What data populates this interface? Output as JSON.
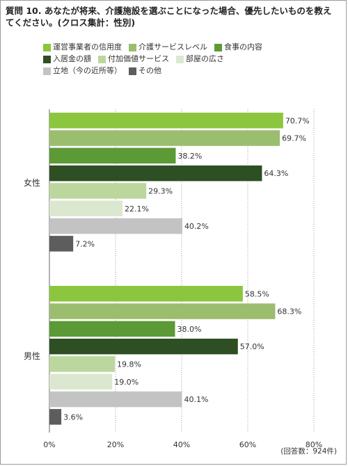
{
  "title": "質問 10. あなたが将来、介護施設を選ぶことになった場合、優先したいものを教えてください。(クロス集計：性別)",
  "note": "(回答数：924件)",
  "chart_data": {
    "type": "bar",
    "orientation": "horizontal",
    "title": "質問 10. あなたが将来、介護施設を選ぶことになった場合、優先したいものを教えてください。(クロス集計：性別)",
    "categories": [
      "女性",
      "男性"
    ],
    "series": [
      {
        "name": "運営事業者の信用度",
        "color": "#8cc63f",
        "values": [
          70.7,
          58.5
        ]
      },
      {
        "name": "介護サービスレベル",
        "color": "#9bbd6e",
        "values": [
          69.7,
          68.3
        ]
      },
      {
        "name": "食事の内容",
        "color": "#5b9a35",
        "values": [
          38.2,
          38.0
        ]
      },
      {
        "name": "入居金の額",
        "color": "#2e4e23",
        "values": [
          64.3,
          57.0
        ]
      },
      {
        "name": "付加価値サービス",
        "color": "#bcd79e",
        "values": [
          29.3,
          19.8
        ]
      },
      {
        "name": "部屋の広さ",
        "color": "#dbe8cf",
        "values": [
          22.1,
          19.0
        ]
      },
      {
        "name": "立地（今の近所等）",
        "color": "#c3c3c3",
        "values": [
          40.2,
          40.1
        ]
      },
      {
        "name": "その他",
        "color": "#5d5d5d",
        "values": [
          7.2,
          3.6
        ]
      }
    ],
    "value_labels": [
      [
        "70.7%",
        "69.7%",
        "38.2%",
        "64.3%",
        "29.3%",
        "22.1%",
        "40.2%",
        "7.2%"
      ],
      [
        "58.5%",
        "68.3%",
        "38.0%",
        "57.0%",
        "19.8%",
        "19.0%",
        "40.1%",
        "3.6%"
      ]
    ],
    "x_ticks": [
      "0%",
      "20%",
      "40%",
      "60%",
      "80%"
    ],
    "xlim": [
      0,
      80
    ],
    "grid": true,
    "legend_position": "top"
  }
}
